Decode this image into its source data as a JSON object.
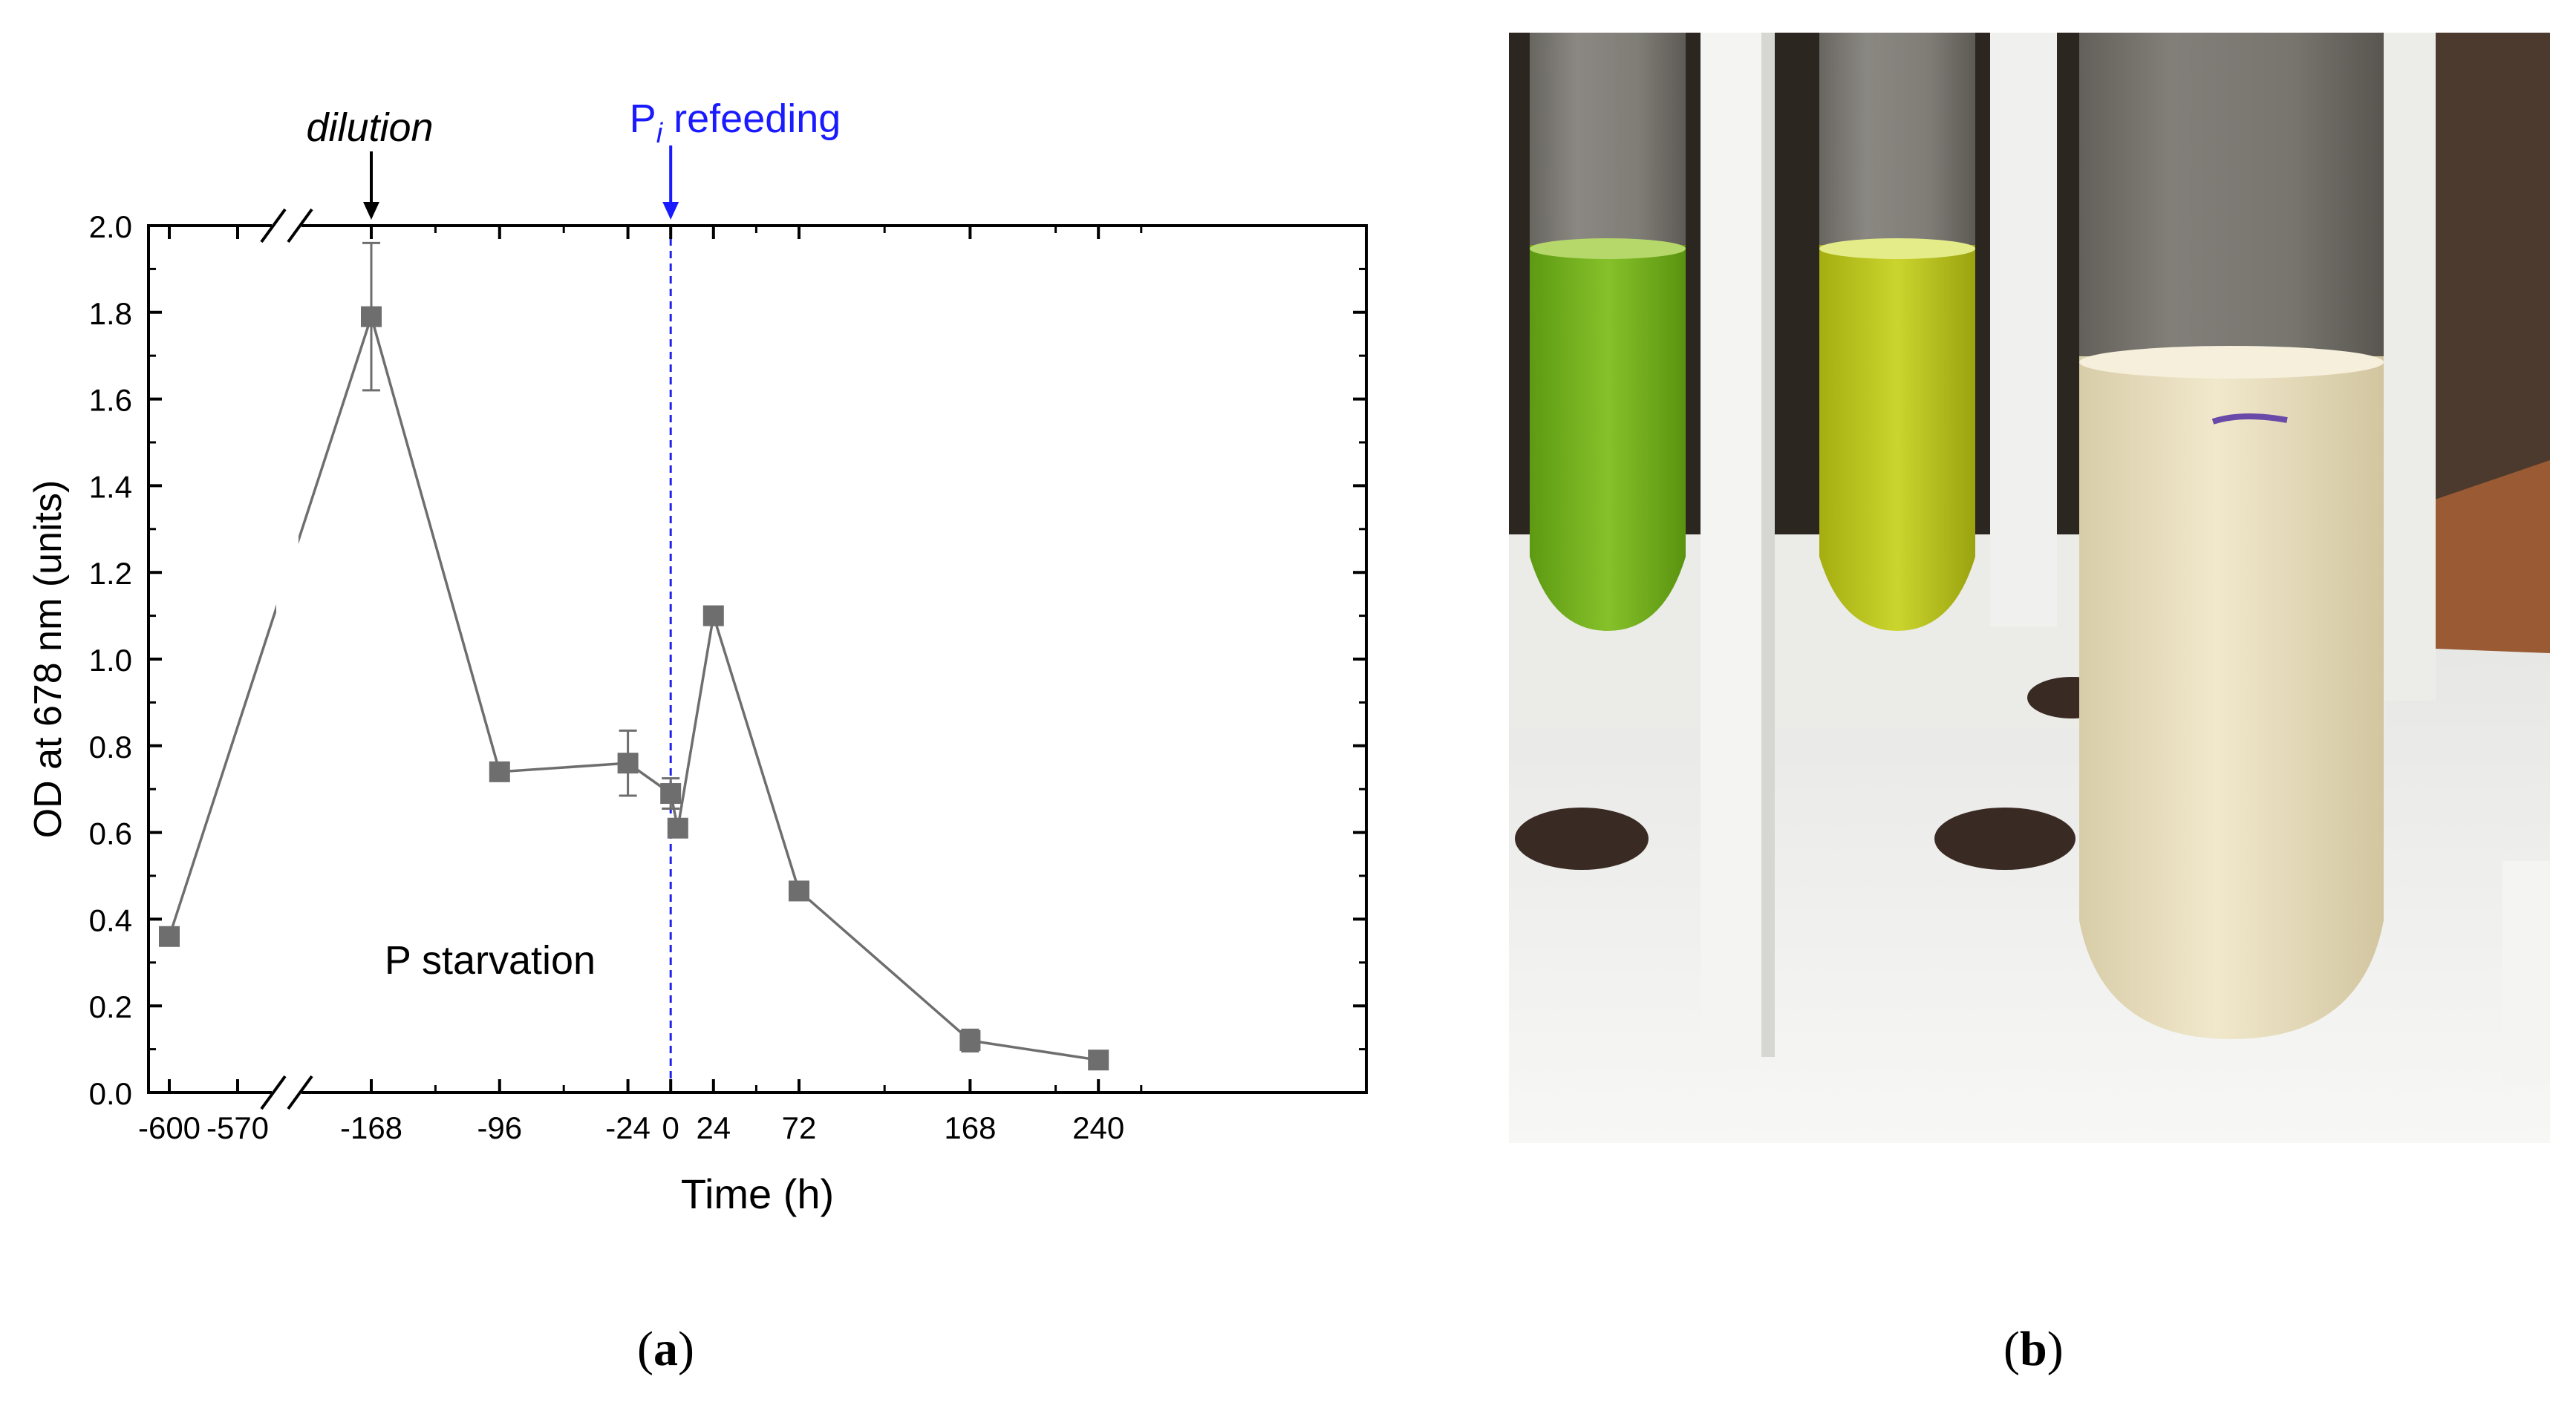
{
  "chart_data": {
    "type": "line",
    "xlabel": "Time (h)",
    "ylabel": "OD at 678 nm (units)",
    "ylim": [
      0,
      2.0
    ],
    "y_ticks": [
      0.0,
      0.2,
      0.4,
      0.6,
      0.8,
      1.0,
      1.2,
      1.4,
      1.6,
      1.8,
      2.0
    ],
    "y_tick_labels": [
      "0.0",
      "0.2",
      "0.4",
      "0.6",
      "0.8",
      "1.0",
      "1.2",
      "1.4",
      "1.6",
      "1.8",
      "2.0"
    ],
    "x_tick_labels": [
      "-600",
      "-570",
      "-168",
      "-96",
      "-24",
      "0",
      "24",
      "72",
      "168",
      "240"
    ],
    "axis_break": "between -570 and -168",
    "grid": false,
    "series": [
      {
        "color": "#6e6e6e",
        "marker": "square",
        "points": [
          {
            "x": -600,
            "y": 0.36,
            "err": 0.0
          },
          {
            "x": -168,
            "y": 1.79,
            "err": 0.17
          },
          {
            "x": -96,
            "y": 0.74,
            "err": 0.0
          },
          {
            "x": -24,
            "y": 0.76,
            "err": 0.075
          },
          {
            "x": 0,
            "y": 0.69,
            "err": 0.035
          },
          {
            "x": 4,
            "y": 0.61,
            "err": 0.0
          },
          {
            "x": 24,
            "y": 1.1,
            "err": 0.0
          },
          {
            "x": 72,
            "y": 0.465,
            "err": 0.0
          },
          {
            "x": 168,
            "y": 0.12,
            "err": 0.025
          },
          {
            "x": 240,
            "y": 0.075,
            "err": 0.0
          }
        ]
      }
    ],
    "annotations": [
      {
        "id": "dilution",
        "text": "dilution",
        "x": -168,
        "color": "#000000"
      },
      {
        "id": "refeeding",
        "text_main": "P",
        "text_sub": "i",
        "text_rest": " refeeding",
        "x": 0,
        "color": "#1a1aff"
      },
      {
        "id": "starvation",
        "text": "P starvation",
        "color": "#000000"
      }
    ]
  },
  "captions": {
    "a": "a",
    "b": "b"
  },
  "photo": {
    "tubes": [
      "green",
      "yellow-green",
      "pale cream"
    ],
    "colors": {
      "background": "#2c2621",
      "green": "#78b21d",
      "yellow": "#bcc71e",
      "cream": "#eadfc0",
      "rack": "#f2f2f0"
    }
  }
}
